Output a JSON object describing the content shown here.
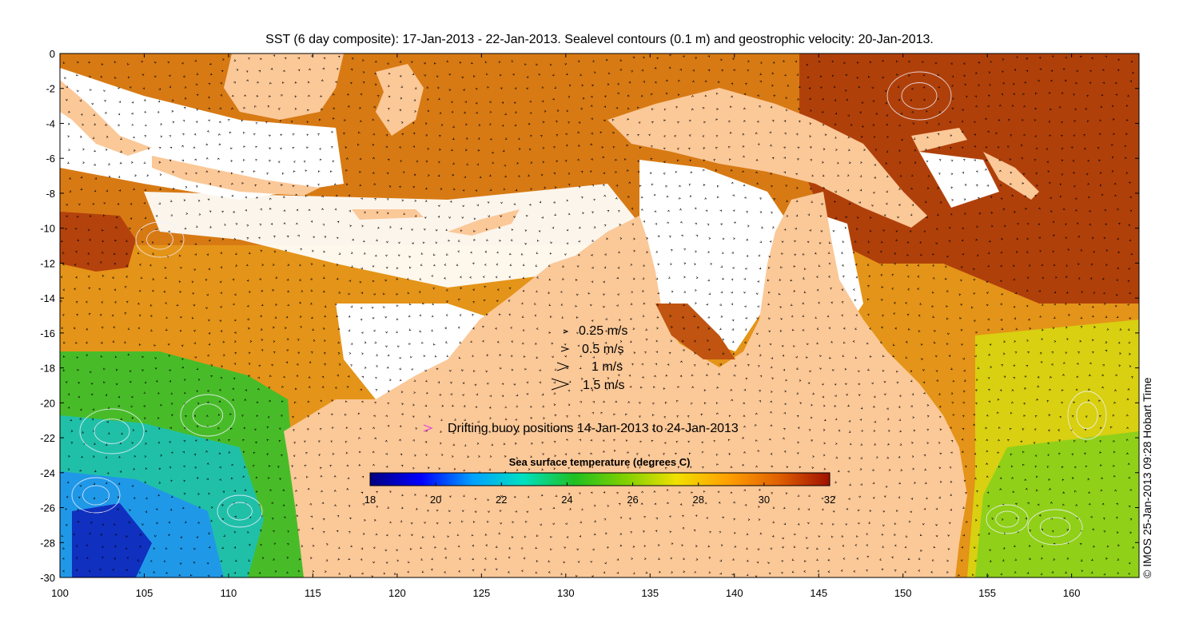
{
  "title": "SST (6 day composite): 17-Jan-2013 - 22-Jan-2013. Sealevel contours (0.1 m) and geostrophic velocity: 20-Jan-2013.",
  "credit": "© IMOS 25-Jan-2013 09:28 Hobart Time",
  "axes": {
    "x_ticks": [
      "100",
      "105",
      "110",
      "115",
      "120",
      "125",
      "130",
      "135",
      "140",
      "145",
      "150",
      "155",
      "160"
    ],
    "x_range": [
      100,
      164
    ],
    "y_ticks": [
      "0",
      "-2",
      "-4",
      "-6",
      "-8",
      "-10",
      "-12",
      "-14",
      "-16",
      "-18",
      "-20",
      "-22",
      "-24",
      "-26",
      "-28",
      "-30"
    ],
    "y_range": [
      -30,
      0
    ]
  },
  "velocity_legend": [
    {
      "label": "0.25 m/s",
      "speed": 0.25
    },
    {
      "label": "0.5 m/s",
      "speed": 0.5
    },
    {
      "label": "1 m/s",
      "speed": 1
    },
    {
      "label": "1.5 m/s",
      "speed": 1.5
    }
  ],
  "buoy_legend": {
    "label": "Drifting buoy positions 14-Jan-2013 to 24-Jan-2013",
    "color": "#e040e0"
  },
  "colorbar": {
    "title": "Sea surface temperature (degrees C)",
    "min": 18,
    "max": 32,
    "ticks": [
      "18",
      "20",
      "22",
      "24",
      "26",
      "28",
      "30",
      "32"
    ],
    "stops": [
      "#00007f",
      "#0000ff",
      "#00a0ff",
      "#00e0c0",
      "#20c020",
      "#80d000",
      "#f0e000",
      "#ffa000",
      "#e06000",
      "#a01000"
    ]
  },
  "colors": {
    "land": "#fbc898",
    "no_data": "#ffffff",
    "warm": "#d06a10",
    "hot": "#a83208",
    "mid": "#e89a18",
    "cool_green": "#50c028",
    "cool_blue": "#20a8e0"
  }
}
